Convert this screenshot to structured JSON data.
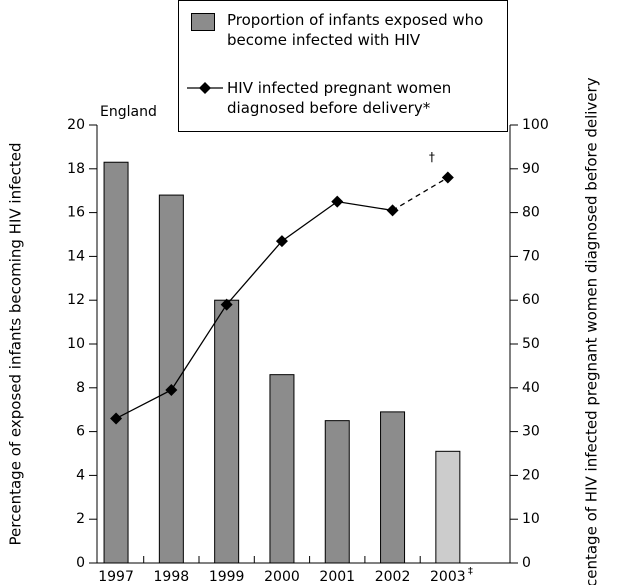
{
  "chart_data": {
    "type": "bar-line",
    "ylabel": "Percentage of exposed infants becoming HIV infected",
    "y2label": "Percentage of HIV infected pregnant women diagnosed before delivery",
    "annotations": [
      "England",
      "†",
      "‡"
    ],
    "categories": [
      "1997",
      "1998",
      "1999",
      "2000",
      "2001",
      "2002",
      "2003"
    ],
    "series": [
      {
        "name": "Proportion of infants exposed who become infected with HIV",
        "color": "#8c8c8c",
        "colors": [
          "#8c8c8c",
          "#8c8c8c",
          "#8c8c8c",
          "#8c8c8c",
          "#8c8c8c",
          "#8c8c8c",
          "#cccccc"
        ],
        "values": [
          18.3,
          16.8,
          12.0,
          8.6,
          6.5,
          6.9,
          5.1
        ]
      },
      {
        "name": "HIV infected pregnant women diagnosed before delivery*",
        "color": "#000000",
        "axis": "y2",
        "dash_last_segment": true,
        "values": [
          33,
          39.5,
          59,
          73.5,
          82.5,
          80.5,
          88
        ]
      }
    ],
    "ylim": [
      0,
      20
    ],
    "yticks": [
      0,
      2,
      4,
      6,
      8,
      10,
      12,
      14,
      16,
      18,
      20
    ],
    "y2lim": [
      0,
      100
    ],
    "y2ticks": [
      0,
      10,
      20,
      30,
      40,
      50,
      60,
      70,
      80,
      90,
      100
    ]
  }
}
